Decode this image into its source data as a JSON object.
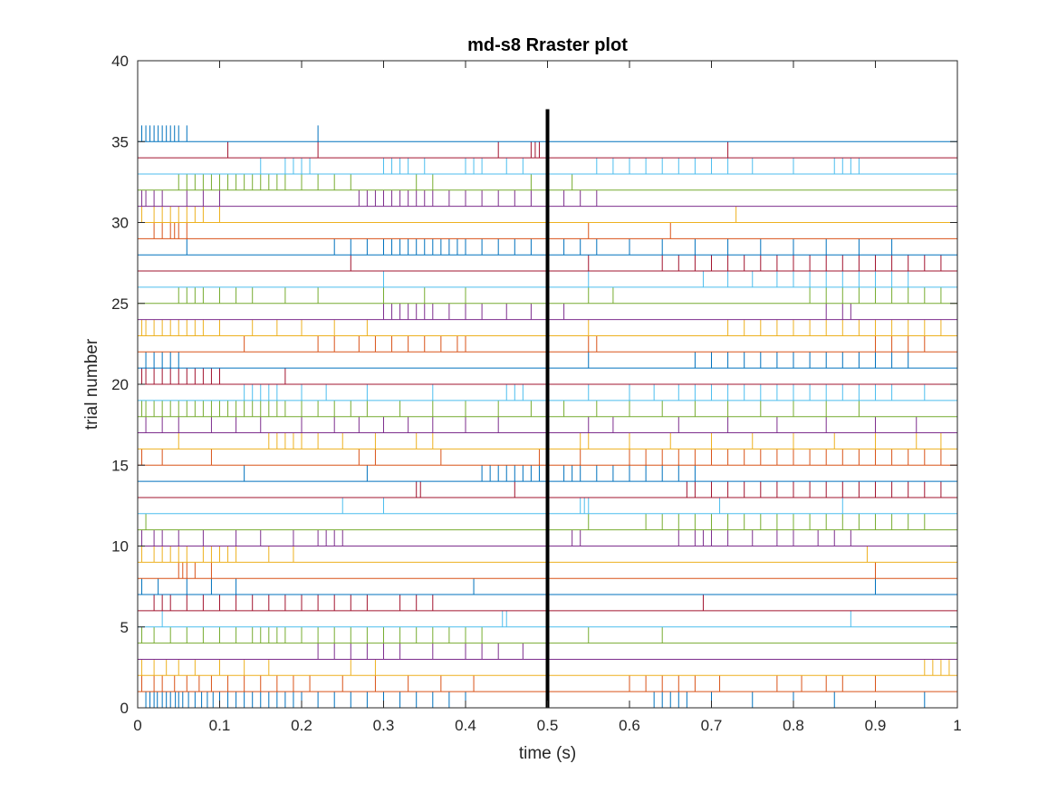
{
  "chart_data": {
    "type": "raster",
    "title": "md-s8 Rraster plot",
    "xlabel": "time (s)",
    "ylabel": "trial number",
    "xlim": [
      0,
      1
    ],
    "ylim": [
      0,
      40
    ],
    "xticks": [
      "0",
      "0.1",
      "0.2",
      "0.3",
      "0.4",
      "0.5",
      "0.6",
      "0.7",
      "0.8",
      "0.9",
      "1"
    ],
    "yticks": [
      "0",
      "5",
      "10",
      "15",
      "20",
      "25",
      "30",
      "35",
      "40"
    ],
    "event_marker_x": 0.5,
    "event_marker_y_range": [
      0,
      37
    ],
    "grid": false,
    "colors": [
      "#0072BD",
      "#D95319",
      "#EDB120",
      "#7E2F8E",
      "#77AC30",
      "#4DBEEE",
      "#A2142F"
    ],
    "trials": [
      {
        "trial": 1,
        "spikes": [
          0.01,
          0.015,
          0.02,
          0.024,
          0.03,
          0.035,
          0.04,
          0.046,
          0.05,
          0.055,
          0.062,
          0.07,
          0.078,
          0.085,
          0.092,
          0.1,
          0.11,
          0.12,
          0.13,
          0.14,
          0.15,
          0.16,
          0.17,
          0.18,
          0.19,
          0.2,
          0.22,
          0.24,
          0.26,
          0.28,
          0.3,
          0.32,
          0.34,
          0.36,
          0.38,
          0.4,
          0.63,
          0.64,
          0.65,
          0.66,
          0.67,
          0.7,
          0.75,
          0.8,
          0.85,
          0.96
        ]
      },
      {
        "trial": 2,
        "spikes": [
          0.005,
          0.02,
          0.03,
          0.045,
          0.06,
          0.075,
          0.09,
          0.11,
          0.13,
          0.15,
          0.17,
          0.19,
          0.21,
          0.25,
          0.29,
          0.33,
          0.37,
          0.41,
          0.6,
          0.62,
          0.64,
          0.66,
          0.68,
          0.71,
          0.78,
          0.81,
          0.84,
          0.86,
          0.9
        ]
      },
      {
        "trial": 3,
        "spikes": [
          0.005,
          0.02,
          0.035,
          0.05,
          0.07,
          0.1,
          0.13,
          0.16,
          0.26,
          0.29,
          0.96,
          0.97,
          0.98,
          0.99,
          1.0
        ]
      },
      {
        "trial": 4,
        "spikes": [
          0.22,
          0.24,
          0.26,
          0.28,
          0.3,
          0.32,
          0.36,
          0.4,
          0.42,
          0.44,
          0.47
        ]
      },
      {
        "trial": 5,
        "spikes": [
          0.005,
          0.02,
          0.04,
          0.06,
          0.08,
          0.1,
          0.12,
          0.14,
          0.15,
          0.16,
          0.17,
          0.18,
          0.2,
          0.22,
          0.24,
          0.26,
          0.28,
          0.3,
          0.32,
          0.34,
          0.36,
          0.38,
          0.4,
          0.42,
          0.55,
          0.64
        ]
      },
      {
        "trial": 6,
        "spikes": [
          0.03,
          0.445,
          0.45,
          0.87
        ]
      },
      {
        "trial": 7,
        "spikes": [
          0.02,
          0.03,
          0.04,
          0.06,
          0.08,
          0.1,
          0.12,
          0.14,
          0.16,
          0.18,
          0.2,
          0.22,
          0.24,
          0.26,
          0.28,
          0.32,
          0.34,
          0.36,
          0.69
        ]
      },
      {
        "trial": 8,
        "spikes": [
          0.005,
          0.025,
          0.06,
          0.09,
          0.12,
          0.41,
          0.9
        ]
      },
      {
        "trial": 9,
        "spikes": [
          0.05,
          0.055,
          0.06,
          0.07,
          0.09,
          0.9
        ]
      },
      {
        "trial": 10,
        "spikes": [
          0.005,
          0.02,
          0.03,
          0.04,
          0.05,
          0.06,
          0.08,
          0.09,
          0.1,
          0.11,
          0.12,
          0.16,
          0.19,
          0.89
        ]
      },
      {
        "trial": 11,
        "spikes": [
          0.005,
          0.02,
          0.03,
          0.05,
          0.08,
          0.12,
          0.15,
          0.19,
          0.22,
          0.23,
          0.24,
          0.25,
          0.53,
          0.54,
          0.66,
          0.68,
          0.69,
          0.7,
          0.72,
          0.75,
          0.78,
          0.8,
          0.83,
          0.85,
          0.87
        ]
      },
      {
        "trial": 12,
        "spikes": [
          0.01,
          0.55,
          0.62,
          0.64,
          0.66,
          0.68,
          0.7,
          0.72,
          0.74,
          0.76,
          0.78,
          0.8,
          0.82,
          0.84,
          0.86,
          0.88,
          0.9,
          0.92,
          0.94,
          0.96
        ]
      },
      {
        "trial": 13,
        "spikes": [
          0.25,
          0.3,
          0.54,
          0.545,
          0.55,
          0.71,
          0.86
        ]
      },
      {
        "trial": 14,
        "spikes": [
          0.34,
          0.345,
          0.46,
          0.67,
          0.68,
          0.7,
          0.72,
          0.74,
          0.76,
          0.78,
          0.8,
          0.82,
          0.84,
          0.86,
          0.88,
          0.9,
          0.92,
          0.94,
          0.96,
          0.98,
          1.0
        ]
      },
      {
        "trial": 15,
        "spikes": [
          0.13,
          0.28,
          0.42,
          0.43,
          0.44,
          0.45,
          0.46,
          0.47,
          0.48,
          0.49,
          0.5,
          0.52,
          0.53,
          0.54,
          0.56,
          0.58,
          0.6,
          0.62,
          0.64,
          0.66,
          0.68
        ]
      },
      {
        "trial": 16,
        "spikes": [
          0.005,
          0.03,
          0.09,
          0.27,
          0.29,
          0.37,
          0.49,
          0.54,
          0.6,
          0.62,
          0.64,
          0.66,
          0.68,
          0.7,
          0.72,
          0.74,
          0.76,
          0.78,
          0.8,
          0.82,
          0.84,
          0.86,
          0.88,
          0.9,
          0.92,
          0.94,
          0.96,
          0.98,
          1.0
        ]
      },
      {
        "trial": 17,
        "spikes": [
          0.05,
          0.16,
          0.17,
          0.18,
          0.19,
          0.2,
          0.22,
          0.25,
          0.29,
          0.34,
          0.36,
          0.54,
          0.55,
          0.6,
          0.65,
          0.7,
          0.75,
          0.8,
          0.85,
          0.9,
          0.95,
          0.98
        ]
      },
      {
        "trial": 18,
        "spikes": [
          0.01,
          0.03,
          0.05,
          0.09,
          0.12,
          0.15,
          0.2,
          0.24,
          0.27,
          0.3,
          0.33,
          0.36,
          0.4,
          0.44,
          0.55,
          0.58,
          0.66,
          0.72,
          0.78,
          0.84,
          0.9,
          0.95
        ]
      },
      {
        "trial": 19,
        "spikes": [
          0.005,
          0.01,
          0.02,
          0.03,
          0.04,
          0.05,
          0.06,
          0.07,
          0.08,
          0.09,
          0.1,
          0.11,
          0.12,
          0.13,
          0.14,
          0.15,
          0.16,
          0.17,
          0.18,
          0.2,
          0.22,
          0.24,
          0.26,
          0.28,
          0.32,
          0.36,
          0.4,
          0.44,
          0.48,
          0.52,
          0.56,
          0.6,
          0.64,
          0.68,
          0.72,
          0.76,
          0.8,
          0.84,
          0.88
        ]
      },
      {
        "trial": 20,
        "spikes": [
          0.13,
          0.14,
          0.15,
          0.16,
          0.17,
          0.2,
          0.23,
          0.28,
          0.36,
          0.45,
          0.46,
          0.47,
          0.5,
          0.55,
          0.6,
          0.63,
          0.66,
          0.68,
          0.7,
          0.72,
          0.74,
          0.76,
          0.78,
          0.8,
          0.82,
          0.84,
          0.86,
          0.88,
          0.9,
          0.92,
          0.96,
          1.0
        ]
      },
      {
        "trial": 21,
        "spikes": [
          0.005,
          0.01,
          0.02,
          0.03,
          0.04,
          0.05,
          0.06,
          0.07,
          0.08,
          0.09,
          0.1,
          0.18
        ]
      },
      {
        "trial": 22,
        "spikes": [
          0.01,
          0.02,
          0.03,
          0.04,
          0.05,
          0.55,
          0.68,
          0.7,
          0.72,
          0.74,
          0.76,
          0.78,
          0.8,
          0.82,
          0.84,
          0.86,
          0.88,
          0.9,
          0.92,
          0.94
        ]
      },
      {
        "trial": 23,
        "spikes": [
          0.13,
          0.22,
          0.24,
          0.27,
          0.29,
          0.31,
          0.33,
          0.35,
          0.37,
          0.39,
          0.4,
          0.55,
          0.56,
          0.9,
          0.92,
          0.94,
          0.96
        ]
      },
      {
        "trial": 24,
        "spikes": [
          0.005,
          0.01,
          0.02,
          0.03,
          0.04,
          0.05,
          0.06,
          0.07,
          0.08,
          0.1,
          0.14,
          0.17,
          0.2,
          0.24,
          0.28,
          0.55,
          0.72,
          0.74,
          0.76,
          0.78,
          0.8,
          0.82,
          0.84,
          0.86,
          0.88,
          0.9,
          0.92,
          0.94,
          0.96,
          0.98
        ]
      },
      {
        "trial": 25,
        "spikes": [
          0.3,
          0.31,
          0.32,
          0.33,
          0.34,
          0.35,
          0.36,
          0.38,
          0.4,
          0.42,
          0.45,
          0.48,
          0.52,
          0.84,
          0.86,
          0.87
        ]
      },
      {
        "trial": 26,
        "spikes": [
          0.05,
          0.06,
          0.07,
          0.08,
          0.1,
          0.12,
          0.14,
          0.18,
          0.22,
          0.3,
          0.35,
          0.4,
          0.55,
          0.58,
          0.82,
          0.84,
          0.86,
          0.88,
          0.9,
          0.92,
          0.94,
          0.96,
          0.98,
          1.0
        ]
      },
      {
        "trial": 27,
        "spikes": [
          0.3,
          0.55,
          0.69,
          0.72,
          0.75,
          0.78,
          0.8,
          0.82,
          0.84,
          0.86,
          0.88,
          0.9,
          0.92,
          0.94
        ]
      },
      {
        "trial": 28,
        "spikes": [
          0.26,
          0.55,
          0.64,
          0.66,
          0.68,
          0.7,
          0.72,
          0.74,
          0.76,
          0.78,
          0.8,
          0.82,
          0.84,
          0.86,
          0.88,
          0.9,
          0.92,
          0.94,
          0.96,
          0.98,
          1.0
        ]
      },
      {
        "trial": 29,
        "spikes": [
          0.06,
          0.24,
          0.26,
          0.28,
          0.3,
          0.31,
          0.32,
          0.33,
          0.34,
          0.35,
          0.36,
          0.37,
          0.38,
          0.39,
          0.4,
          0.42,
          0.44,
          0.46,
          0.48,
          0.5,
          0.52,
          0.54,
          0.56,
          0.6,
          0.64,
          0.68,
          0.72,
          0.76,
          0.8,
          0.84,
          0.88,
          0.92,
          1.0
        ]
      },
      {
        "trial": 30,
        "spikes": [
          0.02,
          0.03,
          0.04,
          0.045,
          0.05,
          0.06,
          0.55,
          0.65
        ]
      },
      {
        "trial": 31,
        "spikes": [
          0.005,
          0.02,
          0.03,
          0.04,
          0.05,
          0.06,
          0.07,
          0.08,
          0.1,
          0.73
        ]
      },
      {
        "trial": 32,
        "spikes": [
          0.005,
          0.01,
          0.02,
          0.03,
          0.06,
          0.08,
          0.1,
          0.27,
          0.28,
          0.29,
          0.3,
          0.31,
          0.32,
          0.33,
          0.34,
          0.35,
          0.36,
          0.38,
          0.4,
          0.42,
          0.44,
          0.46,
          0.48,
          0.5,
          0.52,
          0.54,
          0.56
        ]
      },
      {
        "trial": 33,
        "spikes": [
          0.05,
          0.06,
          0.07,
          0.08,
          0.09,
          0.1,
          0.11,
          0.12,
          0.13,
          0.14,
          0.15,
          0.16,
          0.17,
          0.18,
          0.2,
          0.22,
          0.24,
          0.26,
          0.34,
          0.36,
          0.48,
          0.53
        ]
      },
      {
        "trial": 34,
        "spikes": [
          0.15,
          0.18,
          0.19,
          0.2,
          0.21,
          0.3,
          0.31,
          0.32,
          0.33,
          0.35,
          0.4,
          0.41,
          0.42,
          0.45,
          0.47,
          0.56,
          0.58,
          0.6,
          0.62,
          0.64,
          0.66,
          0.68,
          0.7,
          0.72,
          0.75,
          0.8,
          0.85,
          0.86,
          0.87,
          0.88
        ]
      },
      {
        "trial": 35,
        "spikes": [
          0.11,
          0.22,
          0.44,
          0.48,
          0.485,
          0.49,
          0.72
        ]
      },
      {
        "trial": 36,
        "spikes": [
          0.005,
          0.01,
          0.015,
          0.02,
          0.025,
          0.03,
          0.035,
          0.04,
          0.045,
          0.05,
          0.06,
          0.22
        ]
      }
    ]
  }
}
